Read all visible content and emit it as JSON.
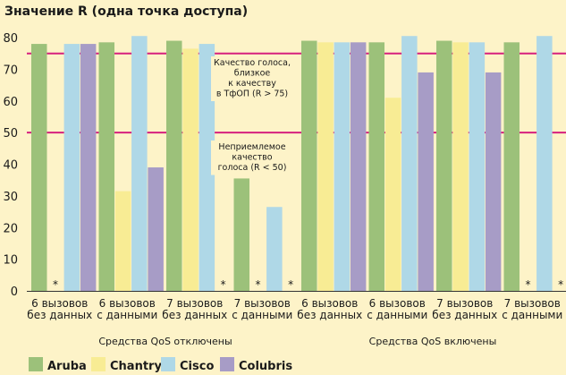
{
  "chart_data": {
    "type": "bar",
    "title": "Значение R (одна точка доступа)",
    "y_ticks": [
      0,
      10,
      20,
      30,
      40,
      50,
      60,
      70,
      80
    ],
    "ylim": [
      0,
      80
    ],
    "grid": false,
    "legend_placement": "bottom",
    "categories": [
      [
        "6 вызовов",
        "без данных"
      ],
      [
        "6 вызовов",
        "с данными"
      ],
      [
        "7 вызовов",
        "без данных"
      ],
      [
        "7 вызовов",
        "с данными"
      ],
      [
        "6 вызовов",
        "без данных"
      ],
      [
        "6 вызовов",
        "с данными"
      ],
      [
        "7 вызовов",
        "без данных"
      ],
      [
        "7 вызовов",
        "с данными"
      ]
    ],
    "groups": [
      {
        "label": "Средства QoS отключены",
        "categories": [
          0,
          1,
          2,
          3
        ]
      },
      {
        "label": "Средства QoS включены",
        "categories": [
          4,
          5,
          6,
          7
        ]
      }
    ],
    "series": [
      {
        "name": "Aruba",
        "color": "#9cc17a",
        "values": [
          78,
          78.5,
          79,
          35.5,
          79,
          78.5,
          79,
          78.5
        ]
      },
      {
        "name": "Chantry",
        "color": "#f8ec94",
        "values": [
          null,
          31.5,
          76.5,
          null,
          78.5,
          61,
          78.5,
          null
        ]
      },
      {
        "name": "Cisco",
        "color": "#afd8e7",
        "values": [
          78,
          80.5,
          78,
          26.5,
          78.5,
          80.5,
          78.5,
          80.5
        ]
      },
      {
        "name": "Colubris",
        "color": "#a79cc6",
        "values": [
          78,
          39,
          null,
          null,
          78.5,
          69,
          69,
          null
        ]
      }
    ],
    "missing_marker": "*",
    "reference_lines": [
      {
        "value": 75,
        "color": "#d6207e"
      },
      {
        "value": 50,
        "color": "#d6207e"
      }
    ],
    "annotations": [
      {
        "lines": [
          "Качество голоса,",
          "близкое",
          "к качеству",
          "в ТфОП (R > 75)"
        ]
      },
      {
        "lines": [
          "Неприемлемое",
          "качество",
          "голоса (R < 50)"
        ]
      }
    ]
  }
}
